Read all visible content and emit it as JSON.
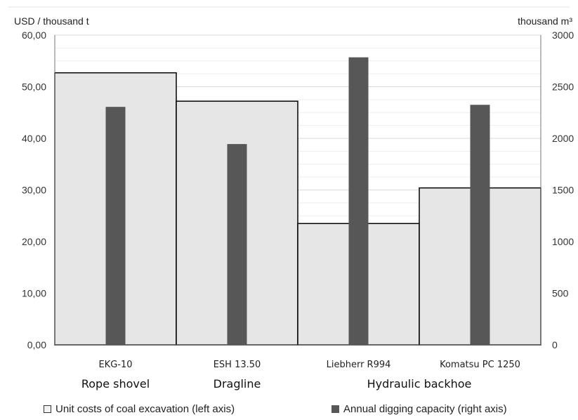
{
  "chart_data": {
    "type": "bar",
    "categories": [
      "EKG-10",
      "ESH 13.50",
      "Liebherr R994",
      "Komatsu PC 1250"
    ],
    "groups": [
      {
        "label": "Rope shovel",
        "categories": [
          "EKG-10"
        ]
      },
      {
        "label": "Dragline",
        "categories": [
          "ESH 13.50"
        ]
      },
      {
        "label": "Hydraulic backhoe",
        "categories": [
          "Liebherr R994",
          "Komatsu PC 1250"
        ]
      }
    ],
    "series": [
      {
        "name": "Unit costs of coal excavation (left axis)",
        "axis": "left",
        "values": [
          52.7,
          47.2,
          23.5,
          30.4
        ],
        "color": "#e6e6e6",
        "stroke": "#000000"
      },
      {
        "name": "Annual digging capacity (right axis)",
        "axis": "right",
        "values": [
          2305,
          1945,
          2785,
          2325
        ],
        "color": "#575757"
      }
    ],
    "left_axis": {
      "label": "USD / thousand t",
      "ylim": [
        0,
        60
      ],
      "ticks": [
        "0,00",
        "10,00",
        "20,00",
        "30,00",
        "40,00",
        "50,00",
        "60,00"
      ]
    },
    "right_axis": {
      "label": "thousand m³",
      "ylim": [
        0,
        3000
      ],
      "ticks": [
        "0",
        "500",
        "1000",
        "1500",
        "2000",
        "2500",
        "3000"
      ]
    },
    "grid": true,
    "legend_position": "bottom"
  }
}
